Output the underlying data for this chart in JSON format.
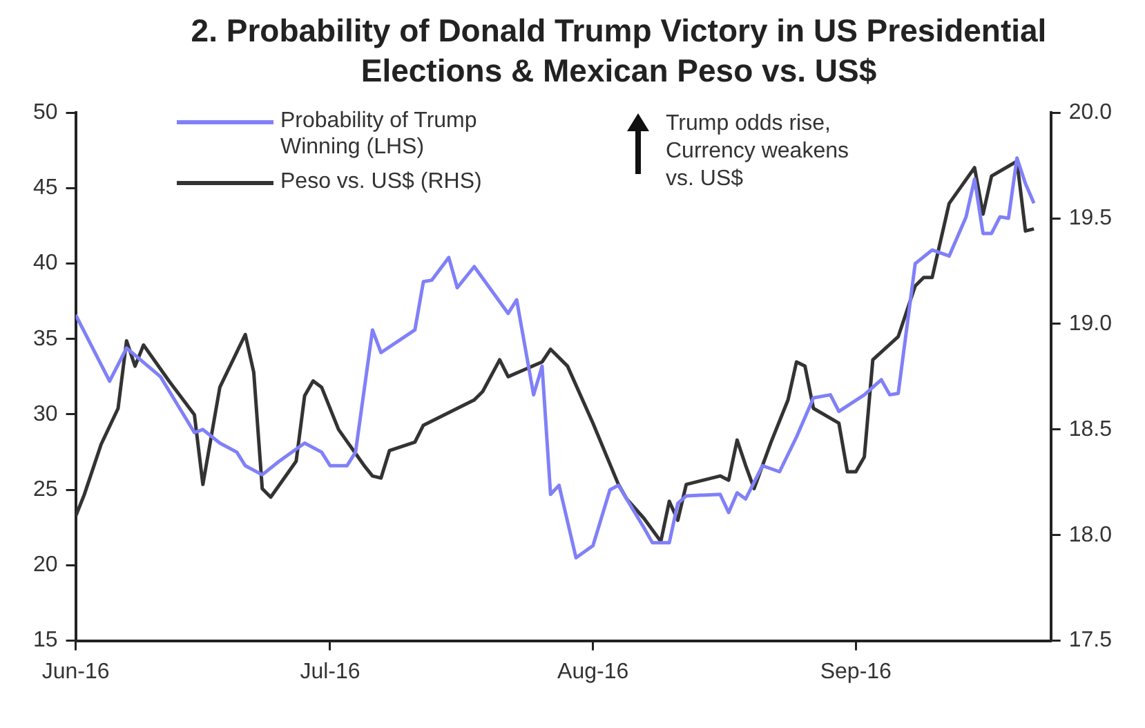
{
  "chart_data": {
    "type": "line",
    "title": "2. Probability of Donald Trump Victory in US Presidential Elections & Mexican Peso vs. US$",
    "annotations": [
      "Trump odds rise, Currency weakens vs. US$"
    ],
    "xlim": [
      "2016-06-01",
      "2016-09-24"
    ],
    "xticks": [
      {
        "value": "2016-06-01",
        "label": "Jun-16"
      },
      {
        "value": "2016-07-01",
        "label": "Jul-16"
      },
      {
        "value": "2016-08-01",
        "label": "Aug-16"
      },
      {
        "value": "2016-09-01",
        "label": "Sep-16"
      }
    ],
    "ylim": [
      15,
      50
    ],
    "yticks": [
      15,
      20,
      25,
      30,
      35,
      40,
      45,
      50
    ],
    "y2lim": [
      17.5,
      20
    ],
    "y2ticks": [
      17.5,
      {
        "value": 18,
        "label": "18.0"
      },
      18.5,
      {
        "value": 19,
        "label": "19.0"
      },
      19.5,
      {
        "value": 20,
        "label": "20.0"
      }
    ],
    "grid": false,
    "legend": "top left",
    "marker": "none",
    "line_style": "solid",
    "series": [
      {
        "name": "Probability of Trump Winning (LHS)",
        "color": "#8080f8",
        "x": [
          "2016-06-01",
          "2016-06-05",
          "2016-06-07",
          "2016-06-11",
          "2016-06-15",
          "2016-06-16",
          "2016-06-18",
          "2016-06-20",
          "2016-06-21",
          "2016-06-23",
          "2016-06-25",
          "2016-06-28",
          "2016-06-30",
          "2016-07-01",
          "2016-07-03",
          "2016-07-04",
          "2016-07-06",
          "2016-07-07",
          "2016-07-11",
          "2016-07-12",
          "2016-07-13",
          "2016-07-15",
          "2016-07-16",
          "2016-07-18",
          "2016-07-22",
          "2016-07-23",
          "2016-07-25",
          "2016-07-26",
          "2016-07-27",
          "2016-07-28",
          "2016-07-30",
          "2016-08-01",
          "2016-08-03",
          "2016-08-04",
          "2016-08-07",
          "2016-08-08",
          "2016-08-10",
          "2016-08-11",
          "2016-08-12",
          "2016-08-16",
          "2016-08-17",
          "2016-08-18",
          "2016-08-19",
          "2016-08-21",
          "2016-08-23",
          "2016-08-25",
          "2016-08-27",
          "2016-08-29",
          "2016-08-30",
          "2016-09-02",
          "2016-09-04",
          "2016-09-05",
          "2016-09-06",
          "2016-09-08",
          "2016-09-10",
          "2016-09-12",
          "2016-09-14",
          "2016-09-15",
          "2016-09-16",
          "2016-09-17",
          "2016-09-18",
          "2016-09-19",
          "2016-09-20",
          "2016-09-21",
          "2016-09-22"
        ],
        "values": [
          36.6,
          32.2,
          34.4,
          32.5,
          28.8,
          29.0,
          28.1,
          27.5,
          26.6,
          26.0,
          26.9,
          28.1,
          27.5,
          26.6,
          26.6,
          27.5,
          35.6,
          34.1,
          35.6,
          38.8,
          38.9,
          40.4,
          38.4,
          39.8,
          36.7,
          37.6,
          31.3,
          33.2,
          24.7,
          25.3,
          20.5,
          21.3,
          25.0,
          25.3,
          22.5,
          21.5,
          21.5,
          24.1,
          24.6,
          24.7,
          23.5,
          24.8,
          24.4,
          26.6,
          26.2,
          28.5,
          31.1,
          31.3,
          30.2,
          31.3,
          32.3,
          31.3,
          31.4,
          40.0,
          40.9,
          40.5,
          43.1,
          45.6,
          42.0,
          42.0,
          43.1,
          43.0,
          47.0,
          45.3,
          44.0
        ]
      },
      {
        "name": "Peso vs. US$ (RHS)",
        "color": "#333333",
        "axis": "y2",
        "x": [
          "2016-06-01",
          "2016-06-02",
          "2016-06-04",
          "2016-06-06",
          "2016-06-07",
          "2016-06-08",
          "2016-06-09",
          "2016-06-12",
          "2016-06-15",
          "2016-06-16",
          "2016-06-18",
          "2016-06-21",
          "2016-06-22",
          "2016-06-23",
          "2016-06-24",
          "2016-06-27",
          "2016-06-28",
          "2016-06-29",
          "2016-06-30",
          "2016-07-02",
          "2016-07-05",
          "2016-07-06",
          "2016-07-07",
          "2016-07-08",
          "2016-07-11",
          "2016-07-12",
          "2016-07-18",
          "2016-07-19",
          "2016-07-21",
          "2016-07-22",
          "2016-07-26",
          "2016-07-27",
          "2016-07-29",
          "2016-08-01",
          "2016-08-04",
          "2016-08-05",
          "2016-08-07",
          "2016-08-09",
          "2016-08-10",
          "2016-08-11",
          "2016-08-12",
          "2016-08-16",
          "2016-08-17",
          "2016-08-18",
          "2016-08-19",
          "2016-08-20",
          "2016-08-22",
          "2016-08-24",
          "2016-08-25",
          "2016-08-26",
          "2016-08-27",
          "2016-08-30",
          "2016-08-31",
          "2016-09-01",
          "2016-09-02",
          "2016-09-03",
          "2016-09-06",
          "2016-09-08",
          "2016-09-09",
          "2016-09-10",
          "2016-09-12",
          "2016-09-15",
          "2016-09-16",
          "2016-09-17",
          "2016-09-20",
          "2016-09-21",
          "2016-09-22"
        ],
        "values": [
          18.09,
          18.19,
          18.43,
          18.6,
          18.92,
          18.8,
          18.9,
          18.73,
          18.57,
          18.24,
          18.7,
          18.95,
          18.77,
          18.22,
          18.18,
          18.35,
          18.66,
          18.73,
          18.7,
          18.5,
          18.33,
          18.28,
          18.27,
          18.4,
          18.44,
          18.52,
          18.64,
          18.68,
          18.83,
          18.75,
          18.82,
          18.88,
          18.8,
          18.53,
          18.24,
          18.17,
          18.08,
          17.97,
          18.16,
          18.07,
          18.24,
          18.28,
          18.26,
          18.45,
          18.33,
          18.22,
          18.44,
          18.64,
          18.82,
          18.8,
          18.6,
          18.53,
          18.3,
          18.3,
          18.37,
          18.83,
          18.94,
          19.18,
          19.22,
          19.22,
          19.57,
          19.74,
          19.52,
          19.7,
          19.77,
          19.44,
          19.45
        ]
      }
    ]
  }
}
